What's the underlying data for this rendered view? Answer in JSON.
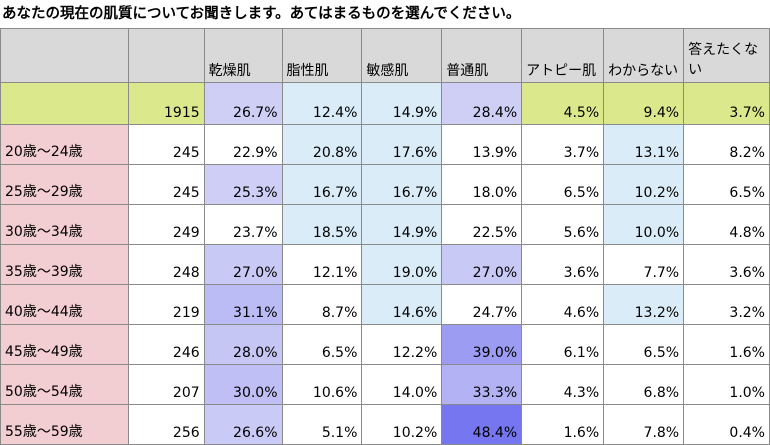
{
  "title": "あなたの現在の肌質についてお聞きします。あてはまるものを選んでください。",
  "chart_data": {
    "type": "table",
    "columns": [
      "乾燥肌",
      "脂性肌",
      "敏感肌",
      "普通肌",
      "アトピー肌",
      "わからない",
      "答えたくない"
    ],
    "total": {
      "n": "1915",
      "values": [
        "26.7%",
        "12.4%",
        "14.9%",
        "28.4%",
        "4.5%",
        "9.4%",
        "3.7%"
      ]
    },
    "rows": [
      {
        "label": "20歳～24歳",
        "n": "245",
        "values": [
          "22.9%",
          "20.8%",
          "17.6%",
          "13.9%",
          "3.7%",
          "13.1%",
          "8.2%"
        ]
      },
      {
        "label": "25歳～29歳",
        "n": "245",
        "values": [
          "25.3%",
          "16.7%",
          "16.7%",
          "18.0%",
          "6.5%",
          "10.2%",
          "6.5%"
        ]
      },
      {
        "label": "30歳～34歳",
        "n": "249",
        "values": [
          "23.7%",
          "18.5%",
          "14.9%",
          "22.5%",
          "5.6%",
          "10.0%",
          "4.8%"
        ]
      },
      {
        "label": "35歳～39歳",
        "n": "248",
        "values": [
          "27.0%",
          "12.1%",
          "19.0%",
          "27.0%",
          "3.6%",
          "7.7%",
          "3.6%"
        ]
      },
      {
        "label": "40歳～44歳",
        "n": "219",
        "values": [
          "31.1%",
          "8.7%",
          "14.6%",
          "24.7%",
          "4.6%",
          "13.2%",
          "3.2%"
        ]
      },
      {
        "label": "45歳～49歳",
        "n": "246",
        "values": [
          "28.0%",
          "6.5%",
          "12.2%",
          "39.0%",
          "6.1%",
          "6.5%",
          "1.6%"
        ]
      },
      {
        "label": "50歳～54歳",
        "n": "207",
        "values": [
          "30.0%",
          "10.6%",
          "14.0%",
          "33.3%",
          "4.3%",
          "6.8%",
          "1.0%"
        ]
      },
      {
        "label": "55歳～59歳",
        "n": "256",
        "values": [
          "26.6%",
          "5.1%",
          "10.2%",
          "48.4%",
          "1.6%",
          "7.8%",
          "0.4%"
        ]
      }
    ],
    "colors": {
      "header": "#d9d9d9",
      "total_row": "#dbe98c",
      "age_label": "#f2cdd2",
      "dry_normal_base": "#cfcff6",
      "dry_normal_strong": "#7373f0",
      "oily_sensitive_unknown": "#d9ecf8"
    }
  }
}
